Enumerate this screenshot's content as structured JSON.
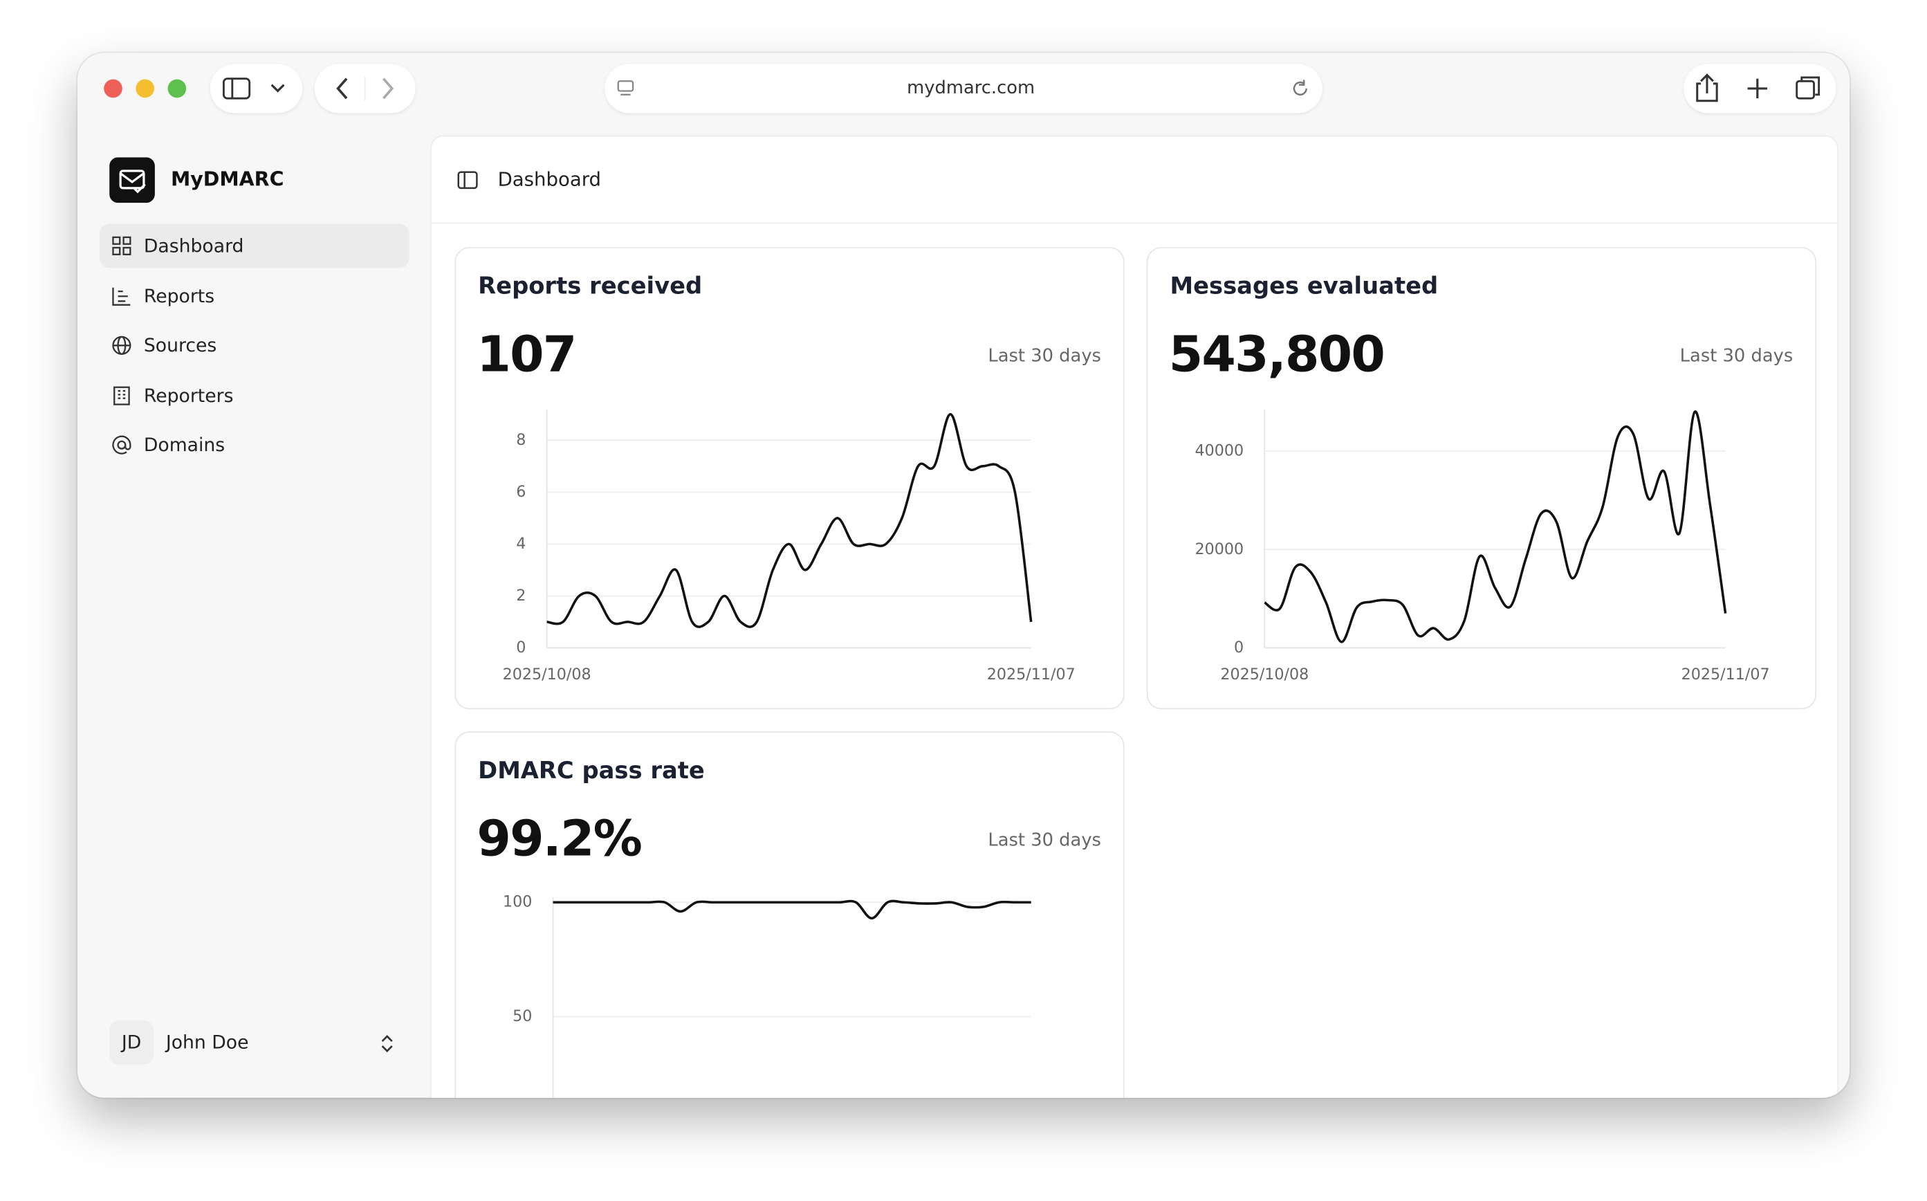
{
  "browser": {
    "url": "mydmarc.com"
  },
  "sidebar": {
    "app_name": "MyDMARC",
    "nav": [
      "Dashboard",
      "Reports",
      "Sources",
      "Reporters",
      "Domains"
    ],
    "user": {
      "initials": "JD",
      "name": "John Doe"
    }
  },
  "header": {
    "title": "Dashboard"
  },
  "chart_data": [
    {
      "type": "line",
      "title": "Reports received",
      "metric": 107,
      "period": "Last 30 days",
      "color": "#111111",
      "categories": [
        "2025/10/08",
        null,
        null,
        null,
        null,
        null,
        null,
        null,
        null,
        null,
        null,
        null,
        null,
        null,
        null,
        null,
        null,
        null,
        null,
        null,
        null,
        null,
        null,
        null,
        null,
        null,
        null,
        null,
        null,
        null,
        "2025/11/07"
      ],
      "values": [
        1,
        1,
        2,
        2,
        1,
        1,
        1,
        2,
        3,
        1,
        1,
        2,
        1,
        1,
        3,
        4,
        3,
        4,
        5,
        4,
        4,
        4,
        5,
        7,
        7,
        9,
        7,
        7,
        7,
        6,
        1
      ],
      "ylim": [
        0,
        9
      ],
      "yticks": [
        0,
        2,
        4,
        6,
        8
      ],
      "grid": true
    },
    {
      "type": "line",
      "title": "Messages evaluated",
      "metric": {
        "value": 543800,
        "label": "543,800"
      },
      "period": "Last 30 days",
      "color": "#111111",
      "categories": [
        "2025/10/08",
        null,
        null,
        null,
        null,
        null,
        null,
        null,
        null,
        null,
        null,
        null,
        null,
        null,
        null,
        null,
        null,
        null,
        null,
        null,
        null,
        null,
        null,
        null,
        null,
        null,
        null,
        null,
        null,
        null,
        "2025/11/07"
      ],
      "values": [
        9200,
        8000,
        16400,
        15400,
        9200,
        1200,
        8200,
        9400,
        9700,
        8700,
        2500,
        4000,
        1700,
        5500,
        18600,
        12200,
        8400,
        18100,
        27300,
        25600,
        14200,
        21600,
        28600,
        43000,
        43500,
        30300,
        35900,
        23300,
        48000,
        29100,
        7000
      ],
      "ylim": [
        0,
        47500
      ],
      "yticks": [
        0,
        20000,
        40000
      ],
      "grid": true
    },
    {
      "type": "line",
      "title": "DMARC pass rate",
      "metric": {
        "value": 99.2,
        "label": "99.2%"
      },
      "period": "Last 30 days",
      "color": "#111111",
      "categories": [
        null,
        null,
        null,
        null,
        null,
        null,
        null,
        null,
        null,
        null,
        null,
        null,
        null,
        null,
        null,
        null,
        null,
        null,
        null,
        null,
        null,
        null,
        null,
        null,
        null,
        null,
        null,
        null,
        null,
        null,
        null
      ],
      "values": [
        100,
        100,
        100,
        100,
        100,
        100,
        100,
        100,
        96,
        100,
        100,
        100,
        100,
        100,
        100,
        100,
        100,
        100,
        100,
        100,
        93,
        100,
        100,
        99.5,
        99.5,
        100,
        98,
        98,
        100,
        100,
        100
      ],
      "ylim": [
        0,
        100
      ],
      "yticks": [
        50,
        100
      ],
      "grid": true
    }
  ]
}
